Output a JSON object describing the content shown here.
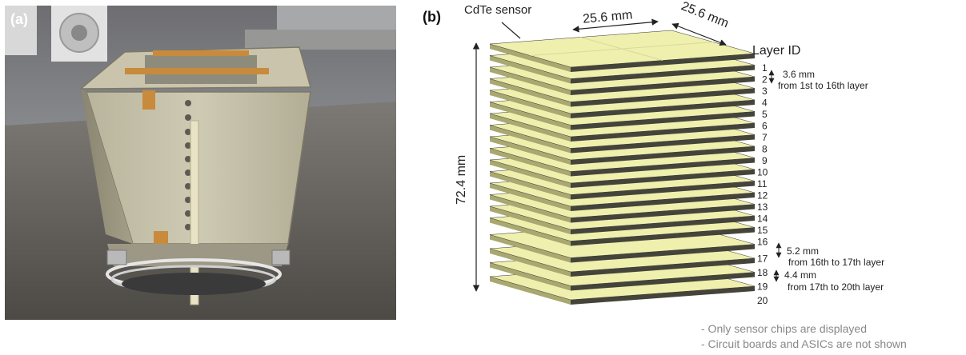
{
  "panels": {
    "a": {
      "label": "(a)"
    },
    "b": {
      "label": "(b)"
    }
  },
  "diagram": {
    "sensor_label": "CdTe sensor",
    "width_label": "25.6 mm",
    "depth_label": "25.6 mm",
    "height_label": "72.4 mm",
    "layer_id_title": "Layer ID",
    "layers": [
      "1",
      "2",
      "3",
      "4",
      "5",
      "6",
      "7",
      "8",
      "9",
      "10",
      "11",
      "12",
      "13",
      "14",
      "15",
      "16",
      "17",
      "18",
      "19",
      "20"
    ],
    "spacing_notes": [
      {
        "value": "3.6 mm",
        "range": "from 1st to 16th layer"
      },
      {
        "value": "5.2 mm",
        "range": "from 16th to 17th layer"
      },
      {
        "value": "4.4 mm",
        "range": "from 17th to 20th layer"
      }
    ],
    "notes": [
      "- Only sensor chips are displayed",
      "- Circuit boards and ASICs are not shown"
    ],
    "colors": {
      "sensor_top": "#efefae",
      "sensor_front": "#a8a870",
      "sensor_side": "#45443a",
      "outline": "#333333"
    }
  }
}
